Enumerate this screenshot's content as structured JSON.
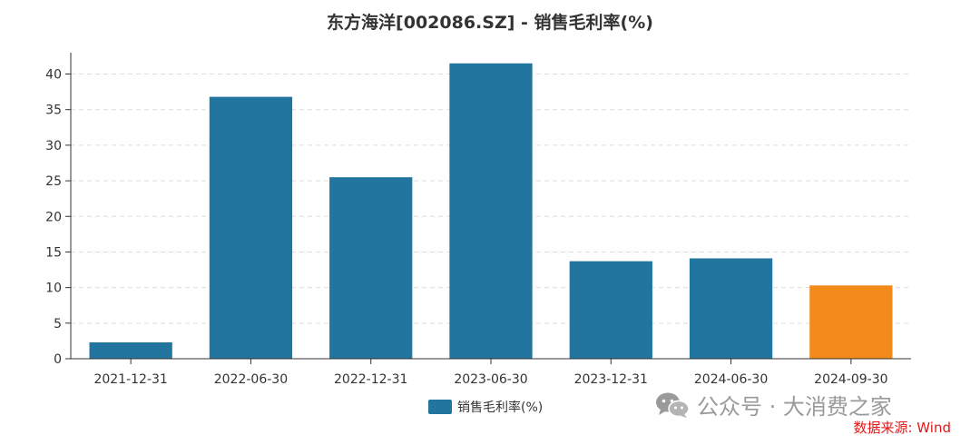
{
  "title": "东方海洋[002086.SZ] - 销售毛利率(%)",
  "colors": {
    "bar": "#21759f",
    "highlight": "#f28a1c",
    "grid": "#dddddd",
    "axis": "#333333",
    "source": "#e01818"
  },
  "watermark": {
    "icon": "wechat-icon",
    "text": "公众号 · 大消费之家"
  },
  "source": "数据来源: Wind",
  "chart_data": {
    "type": "bar",
    "title": "东方海洋[002086.SZ] - 销售毛利率(%)",
    "categories": [
      "2021-12-31",
      "2022-06-30",
      "2022-12-31",
      "2023-06-30",
      "2023-12-31",
      "2024-06-30",
      "2024-09-30"
    ],
    "series": [
      {
        "name": "销售毛利率(%)",
        "values": [
          2.3,
          36.8,
          25.5,
          41.5,
          13.7,
          14.1,
          10.3
        ]
      }
    ],
    "highlight_index": 6,
    "ylim": [
      0,
      43
    ],
    "yticks": [
      0,
      5,
      10,
      15,
      20,
      25,
      30,
      35,
      40
    ],
    "grid": true,
    "legend": "bottom-center"
  }
}
